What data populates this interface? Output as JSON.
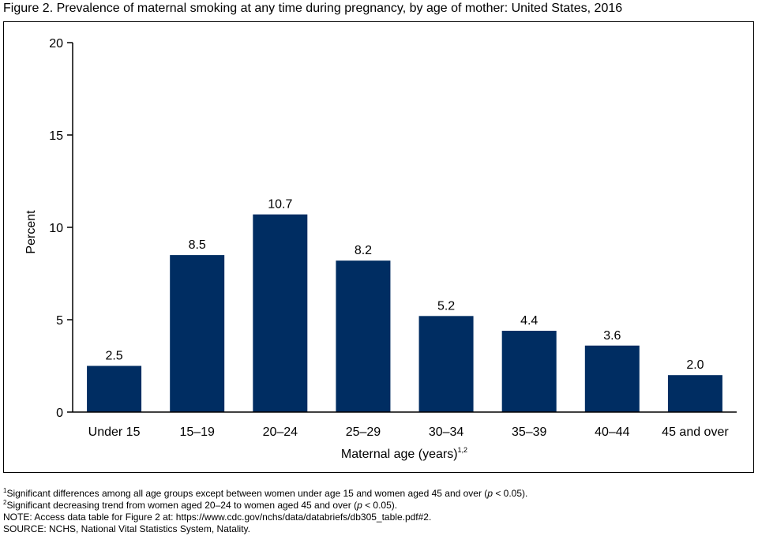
{
  "figure_title": "Figure 2. Prevalence of maternal smoking at any time during pregnancy, by age of mother: United States, 2016",
  "chart_data": {
    "type": "bar",
    "categories": [
      "Under 15",
      "15–19",
      "20–24",
      "25–29",
      "30–34",
      "35–39",
      "40–44",
      "45 and over"
    ],
    "values": [
      2.5,
      8.5,
      10.7,
      8.2,
      5.2,
      4.4,
      3.6,
      2.0
    ],
    "data_labels": [
      "2.5",
      "8.5",
      "10.7",
      "8.2",
      "5.2",
      "4.4",
      "3.6",
      "2.0"
    ],
    "ylabel": "Percent",
    "xlabel": "Maternal age (years)",
    "xlabel_sup": "1,2",
    "ylim": [
      0,
      20
    ],
    "yticks": [
      0,
      5,
      10,
      15,
      20
    ],
    "bar_color": "#002d62",
    "grid": false
  },
  "footnotes": {
    "note1_mark": "1",
    "note1_text": "Significant differences among all age groups except between women under age 15 and women aged 45 and over (",
    "note1_p": "p",
    "note1_end": " < 0.05).",
    "note2_mark": "2",
    "note2_text": "Significant decreasing trend from women aged 20–24 to women aged 45 and over (",
    "note2_p": "p",
    "note2_end": " < 0.05).",
    "note_line": "NOTE: Access data table for Figure 2 at: https://www.cdc.gov/nchs/data/databriefs/db305_table.pdf#2.",
    "source_line": "SOURCE: NCHS, National Vital Statistics System, Natality."
  }
}
